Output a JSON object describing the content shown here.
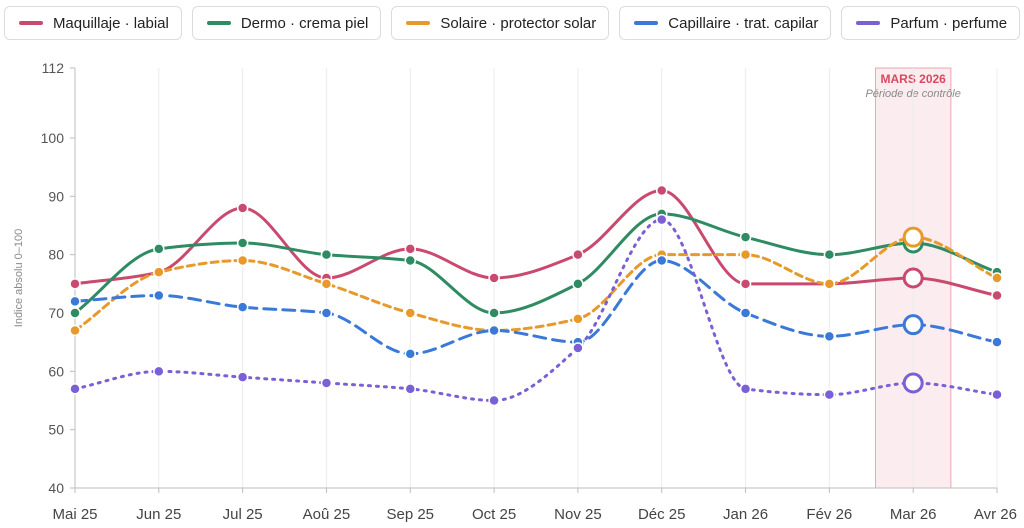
{
  "chart_data": {
    "type": "line",
    "categories": [
      "Mai 25",
      "Jun 25",
      "Jul 25",
      "Aoû 25",
      "Sep 25",
      "Oct 25",
      "Nov 25",
      "Déc 25",
      "Jan 26",
      "Fév 26",
      "Mar 26",
      "Avr 26"
    ],
    "ylabel": "Indice absolu 0–100",
    "ylim": [
      40,
      112
    ],
    "yticks": [
      40,
      50,
      60,
      70,
      80,
      90,
      100,
      112
    ],
    "grid": "vertical",
    "legend_position": "top",
    "highlight": {
      "category": "Mar 26",
      "title": "MARS 2026",
      "subtitle": "Période de contrôle",
      "color": "#d9485f"
    },
    "series": [
      {
        "name": "Maquillaje · labial",
        "color": "#c94a6e",
        "dash": "solid",
        "values": [
          75,
          77,
          88,
          76,
          81,
          76,
          80,
          91,
          75,
          75,
          76,
          73
        ]
      },
      {
        "name": "Dermo · crema piel",
        "color": "#2e8b62",
        "dash": "solid",
        "values": [
          70,
          81,
          82,
          80,
          79,
          70,
          75,
          87,
          83,
          80,
          82,
          77
        ]
      },
      {
        "name": "Solaire · protector solar",
        "color": "#e79a2b",
        "dash": "short",
        "values": [
          67,
          77,
          79,
          75,
          70,
          67,
          69,
          80,
          80,
          75,
          83,
          76
        ]
      },
      {
        "name": "Capillaire · trat. capilar",
        "color": "#3b79d8",
        "dash": "long",
        "values": [
          72,
          73,
          71,
          70,
          63,
          67,
          65,
          79,
          70,
          66,
          68,
          65
        ]
      },
      {
        "name": "Parfum · perfume",
        "color": "#7b5fd6",
        "dash": "dotted",
        "values": [
          57,
          60,
          59,
          58,
          57,
          55,
          64,
          86,
          57,
          56,
          58,
          56
        ]
      }
    ]
  }
}
